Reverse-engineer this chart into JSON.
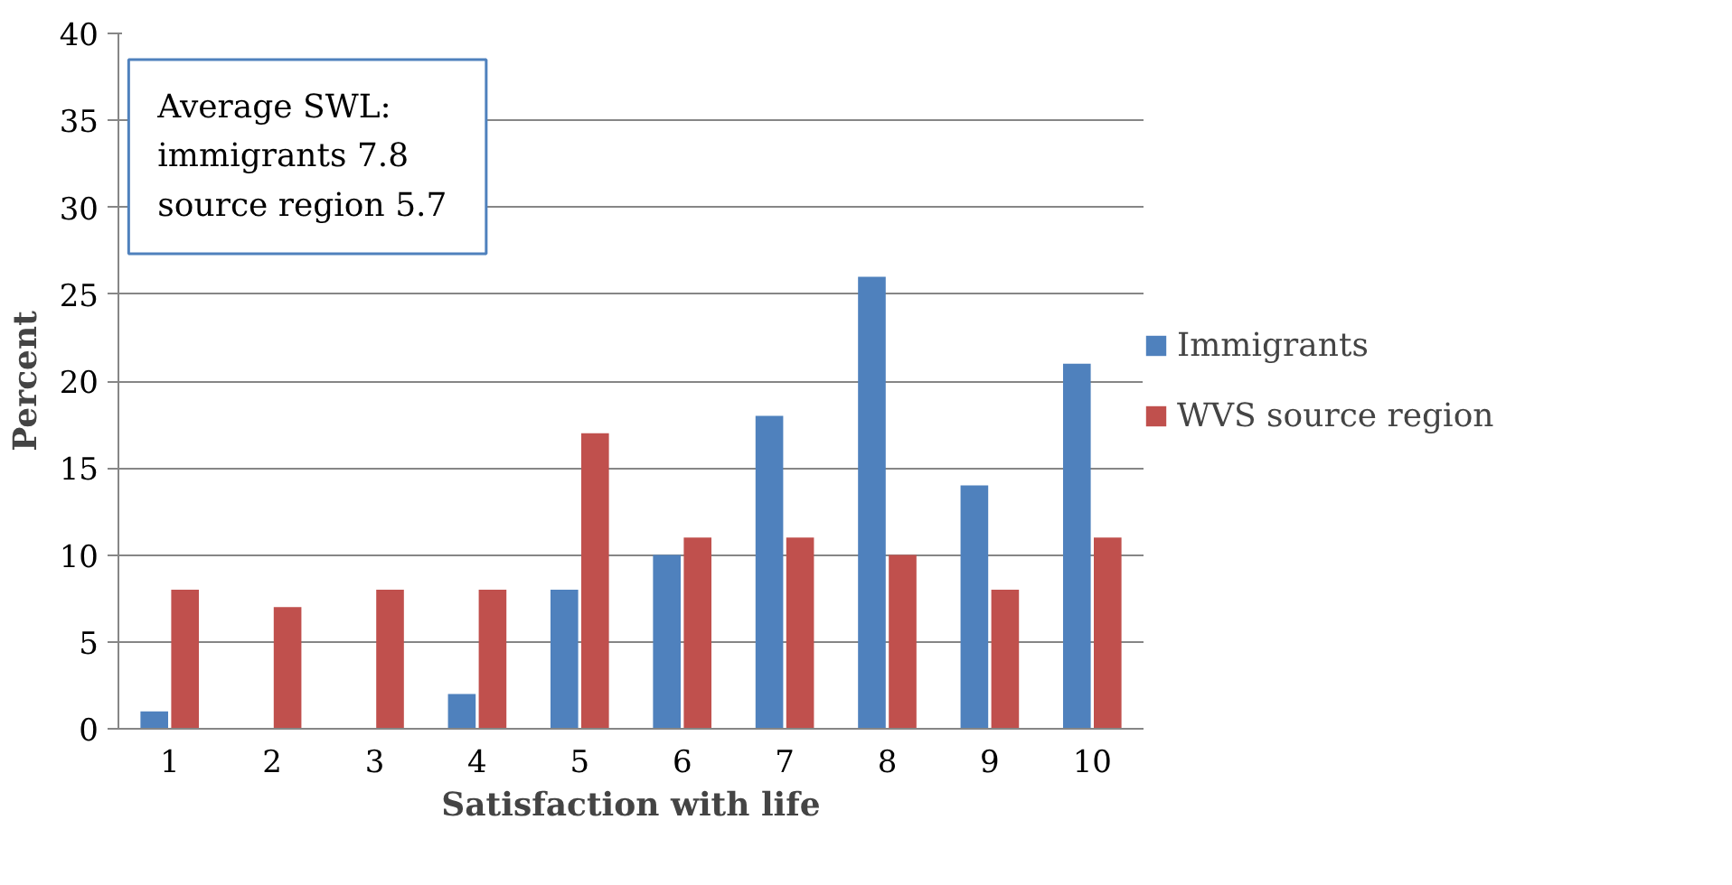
{
  "chart_data": {
    "type": "bar",
    "xlabel": "Satisfaction with life",
    "ylabel": "Percent",
    "categories": [
      "1",
      "2",
      "3",
      "4",
      "5",
      "6",
      "7",
      "8",
      "9",
      "10"
    ],
    "series": [
      {
        "name": "Immigrants",
        "color": "#4f81bd",
        "values": [
          1,
          0,
          0,
          2,
          8,
          10,
          18,
          26,
          14,
          21
        ]
      },
      {
        "name": "WVS source region",
        "color": "#c0504d",
        "values": [
          8,
          7,
          8,
          8,
          17,
          11,
          11,
          10,
          8,
          11
        ]
      }
    ],
    "ylim": [
      0,
      40
    ],
    "yticks": [
      0,
      5,
      10,
      15,
      20,
      25,
      30,
      35,
      40
    ],
    "grid": "y",
    "legend": "right",
    "annotations": [
      "Average SWL:",
      "immigrants     7.8",
      "source region  5.7"
    ]
  }
}
